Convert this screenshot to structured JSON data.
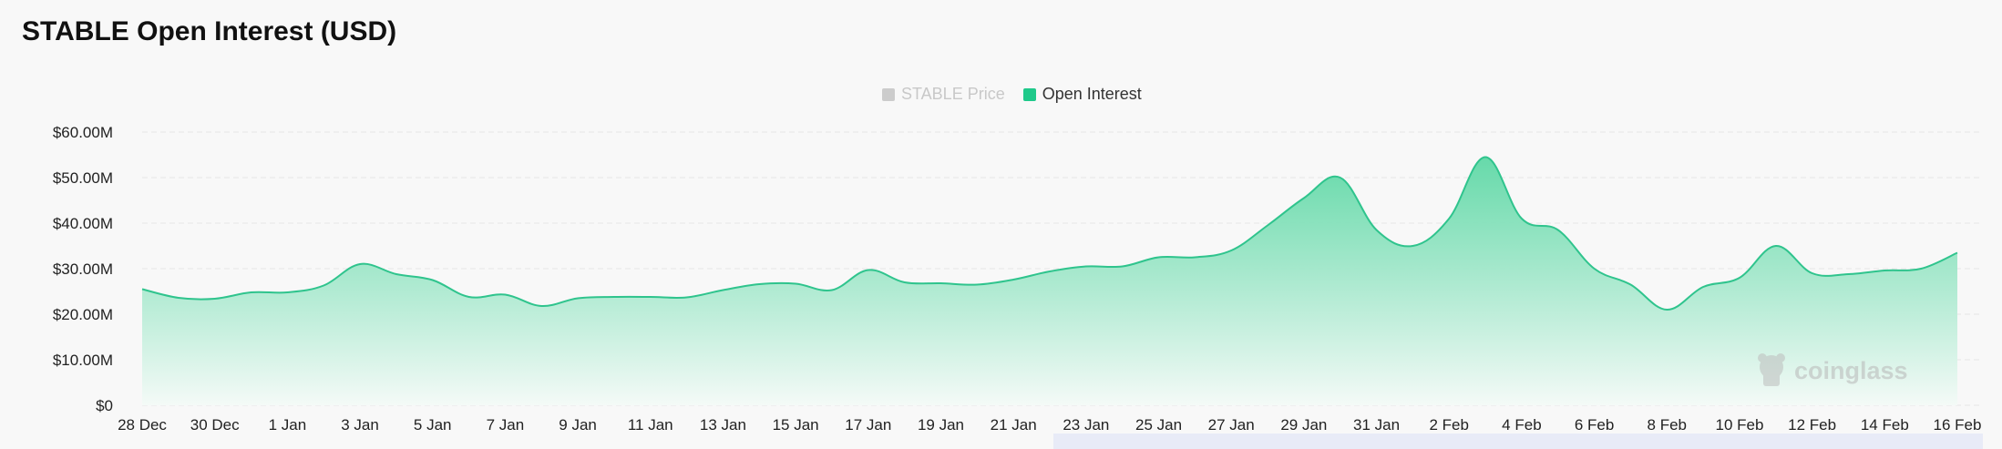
{
  "title": "STABLE Open Interest (USD)",
  "legend": [
    {
      "label": "STABLE Price",
      "color": "#cccccc",
      "active": false
    },
    {
      "label": "Open Interest",
      "color": "#1fc98a",
      "active": true
    }
  ],
  "watermark": "coinglass",
  "colors": {
    "line": "#2fc48d",
    "fill_top": "#6fdcb0",
    "fill_bottom": "#f4faf7",
    "grid": "#e6e6e6",
    "axis_text": "#222222"
  },
  "chart_data": {
    "type": "area",
    "title": "STABLE Open Interest (USD)",
    "xlabel": "",
    "ylabel": "",
    "ylim": [
      0,
      60
    ],
    "yticks": [
      {
        "value": 0,
        "label": "$0"
      },
      {
        "value": 10,
        "label": "$10.00M"
      },
      {
        "value": 20,
        "label": "$20.00M"
      },
      {
        "value": 30,
        "label": "$30.00M"
      },
      {
        "value": 40,
        "label": "$40.00M"
      },
      {
        "value": 50,
        "label": "$50.00M"
      },
      {
        "value": 60,
        "label": "$60.00M"
      }
    ],
    "xticks": [
      "28 Dec",
      "30 Dec",
      "1 Jan",
      "3 Jan",
      "5 Jan",
      "7 Jan",
      "9 Jan",
      "11 Jan",
      "13 Jan",
      "15 Jan",
      "17 Jan",
      "19 Jan",
      "21 Jan",
      "23 Jan",
      "25 Jan",
      "27 Jan",
      "29 Jan",
      "31 Jan",
      "2 Feb",
      "4 Feb",
      "6 Feb",
      "8 Feb",
      "10 Feb",
      "12 Feb",
      "14 Feb",
      "16 Feb"
    ],
    "grid": true,
    "legend_position": "top-center",
    "series": [
      {
        "name": "Open Interest",
        "unit": "USD millions",
        "dates": [
          "28 Dec",
          "29 Dec",
          "30 Dec",
          "31 Dec",
          "1 Jan",
          "2 Jan",
          "3 Jan",
          "4 Jan",
          "5 Jan",
          "6 Jan",
          "7 Jan",
          "8 Jan",
          "9 Jan",
          "10 Jan",
          "11 Jan",
          "12 Jan",
          "13 Jan",
          "14 Jan",
          "15 Jan",
          "16 Jan",
          "17 Jan",
          "18 Jan",
          "19 Jan",
          "20 Jan",
          "21 Jan",
          "22 Jan",
          "23 Jan",
          "24 Jan",
          "25 Jan",
          "26 Jan",
          "27 Jan",
          "28 Jan",
          "29 Jan",
          "30 Jan",
          "31 Jan",
          "1 Feb",
          "2 Feb",
          "3 Feb",
          "4 Feb",
          "5 Feb",
          "6 Feb",
          "7 Feb",
          "8 Feb",
          "9 Feb",
          "10 Feb",
          "11 Feb",
          "12 Feb",
          "13 Feb",
          "14 Feb",
          "15 Feb",
          "16 Feb"
        ],
        "values": [
          25.5,
          23.6,
          23.4,
          24.8,
          24.8,
          26.3,
          31.0,
          28.8,
          27.5,
          23.8,
          24.3,
          21.8,
          23.5,
          23.8,
          23.8,
          23.7,
          25.3,
          26.6,
          26.7,
          25.3,
          29.7,
          27.0,
          26.8,
          26.5,
          27.6,
          29.4,
          30.5,
          30.5,
          32.5,
          32.5,
          34.0,
          39.5,
          45.5,
          50.0,
          38.5,
          35.0,
          41.0,
          54.5,
          41.0,
          38.5,
          30.0,
          26.5,
          21.0,
          26.0,
          28.0,
          35.0,
          29.0,
          28.8,
          29.6,
          30.0,
          33.5
        ]
      }
    ]
  }
}
